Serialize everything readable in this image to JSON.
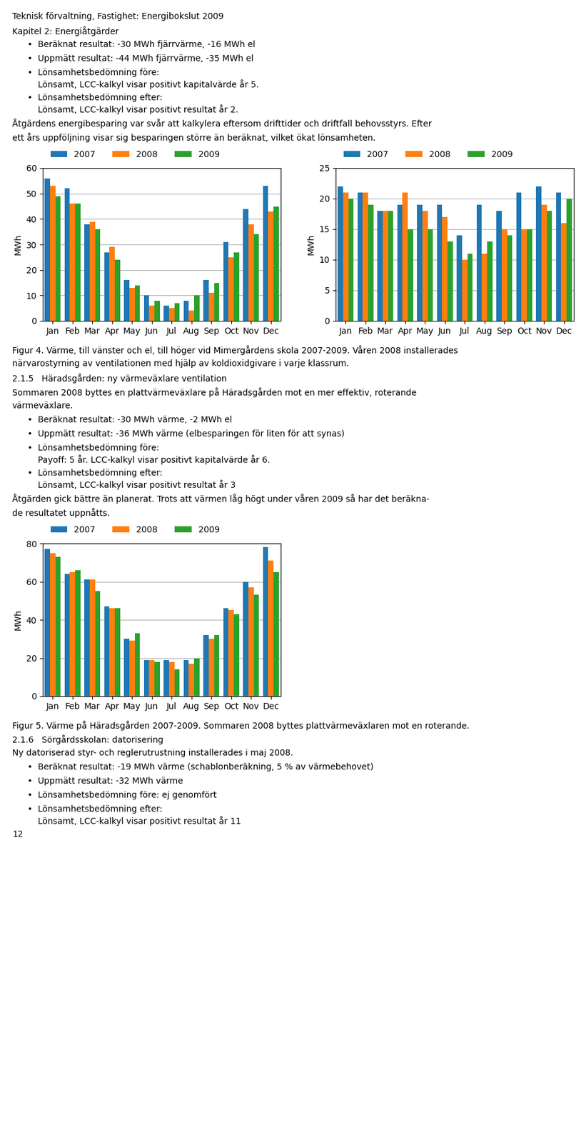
{
  "chart_data": [
    {
      "type": "bar",
      "categories": [
        "Jan",
        "Feb",
        "Mar",
        "Apr",
        "May",
        "Jun",
        "Jul",
        "Aug",
        "Sep",
        "Oct",
        "Nov",
        "Dec"
      ],
      "series": [
        {
          "name": "2007",
          "values": [
            56,
            52,
            38,
            27,
            16,
            10,
            6,
            8,
            16,
            31,
            44,
            53
          ]
        },
        {
          "name": "2008",
          "values": [
            53,
            46,
            39,
            29,
            13,
            6,
            5,
            4,
            11,
            25,
            38,
            43
          ]
        },
        {
          "name": "2009",
          "values": [
            49,
            46,
            36,
            24,
            14,
            8,
            7,
            10,
            15,
            27,
            34,
            45
          ]
        }
      ],
      "ylabel": "MWh",
      "ylim": [
        0,
        60
      ],
      "yticks": [
        0,
        10,
        20,
        30,
        40,
        50,
        60
      ],
      "grid": true,
      "legend": "upper left"
    },
    {
      "type": "bar",
      "categories": [
        "Jan",
        "Feb",
        "Mar",
        "Apr",
        "May",
        "Jun",
        "Jul",
        "Aug",
        "Sep",
        "Oct",
        "Nov",
        "Dec"
      ],
      "series": [
        {
          "name": "2007",
          "values": [
            22,
            21,
            18,
            19,
            19,
            19,
            14,
            19,
            18,
            21,
            22,
            21
          ]
        },
        {
          "name": "2008",
          "values": [
            21,
            21,
            18,
            21,
            18,
            17,
            10,
            11,
            15,
            15,
            19,
            16
          ]
        },
        {
          "name": "2009",
          "values": [
            20,
            19,
            18,
            15,
            15,
            13,
            11,
            13,
            14,
            15,
            18,
            20
          ]
        }
      ],
      "ylabel": "MWh",
      "ylim": [
        0,
        25
      ],
      "yticks": [
        0,
        5,
        10,
        15,
        20,
        25
      ],
      "grid": true,
      "legend": "upper left"
    },
    {
      "type": "bar",
      "categories": [
        "Jan",
        "Feb",
        "Mar",
        "Apr",
        "May",
        "Jun",
        "Jul",
        "Aug",
        "Sep",
        "Oct",
        "Nov",
        "Dec"
      ],
      "series": [
        {
          "name": "2007",
          "values": [
            77,
            64,
            61,
            47,
            30,
            19,
            19,
            19,
            32,
            46,
            60,
            78
          ]
        },
        {
          "name": "2008",
          "values": [
            75,
            65,
            61,
            46,
            29,
            19,
            18,
            17,
            30,
            45,
            57,
            71
          ]
        },
        {
          "name": "2009",
          "values": [
            73,
            66,
            55,
            46,
            33,
            18,
            14,
            20,
            32,
            43,
            53,
            65
          ]
        }
      ],
      "ylabel": "MWh",
      "ylim": [
        0,
        80
      ],
      "yticks": [
        0,
        20,
        40,
        60,
        80
      ],
      "grid": true,
      "legend": "upper left"
    }
  ],
  "annotations": [
    [
      "Teknisk förvaltning, Fastighet: Energibokslut 2009",
      "Kapitel 2: Energiåtgärder",
      [
        "•",
        "Beräknat resultat: -30 MWh fjärrvärme, -16 MWh el"
      ],
      [
        "•",
        "Uppmätt resultat: -44 MWh fjärrvärme, -35 MWh el"
      ],
      [
        "•",
        "Lönsamhetsbedömning före:",
        "Lönsamt, LCC-kalkyl visar positivt kapitalvärde år 5."
      ],
      [
        "•",
        "Lönsamhetsbedömning efter:",
        "Lönsamt, LCC-kalkyl visar positivt resultat år 2."
      ],
      "Åtgärdens energibesparing var svår att kalkylera eftersom drifttider och driftfall behovsstyrs. Efter",
      "ett års uppföljning visar sig besparingen större än beräknat, vilket ökat lönsamheten."
    ],
    [
      "Figur 4. Värme, till vänster och el, till höger vid Mimergårdens skola 2007-2009. Våren 2008 installerades",
      "närvarostyrning av ventilationen med hjälp av koldioxidgivare i varje klassrum.",
      "2.1.5   Häradsgården: ny värmeväxlare ventilation",
      "Sommaren 2008 byttes en plattvärmeväxlare på Häradsgården mot en mer effektiv, roterande",
      "värmeväxlare.",
      [
        "•",
        "Beräknat resultat: -30 MWh värme, -2 MWh el"
      ],
      [
        "•",
        "Uppmätt resultat: -36 MWh värme (elbesparingen för liten för att synas)"
      ],
      [
        "•",
        "Lönsamhetsbedömning före:",
        "Payoff: 5 år. LCC-kalkyl visar positivt kapitalvärde år 6."
      ],
      [
        "•",
        "Lönsamhetsbedömning efter:",
        "Lönsamt, LCC-kalkyl visar positivt resultat år 3"
      ],
      "Åtgärden gick bättre än planerat. Trots att värmen låg högt under våren 2009 så har det beräkna-",
      "de resultatet uppnåtts."
    ],
    [
      "Figur 5. Värme på Häradsgården 2007-2009. Sommaren 2008 byttes plattvärmeväxlaren mot en roterande.",
      "2.1.6   Sörgårdsskolan: datorisering",
      "Ny datoriserad styr- och reglerutrustning installerades i maj 2008.",
      [
        "•",
        "Beräknat resultat: -19 MWh värme (schablonberäkning, 5 % av värmebehovet)"
      ],
      [
        "•",
        "Uppmätt resultat: -32 MWh värme"
      ],
      [
        "•",
        "Lönsamhetsbedömning före: ej genomfört"
      ],
      [
        "•",
        "Lönsamhetsbedömning efter:",
        "Lönsamt, LCC-kalkyl visar positivt resultat år 11"
      ],
      "12"
    ]
  ]
}
